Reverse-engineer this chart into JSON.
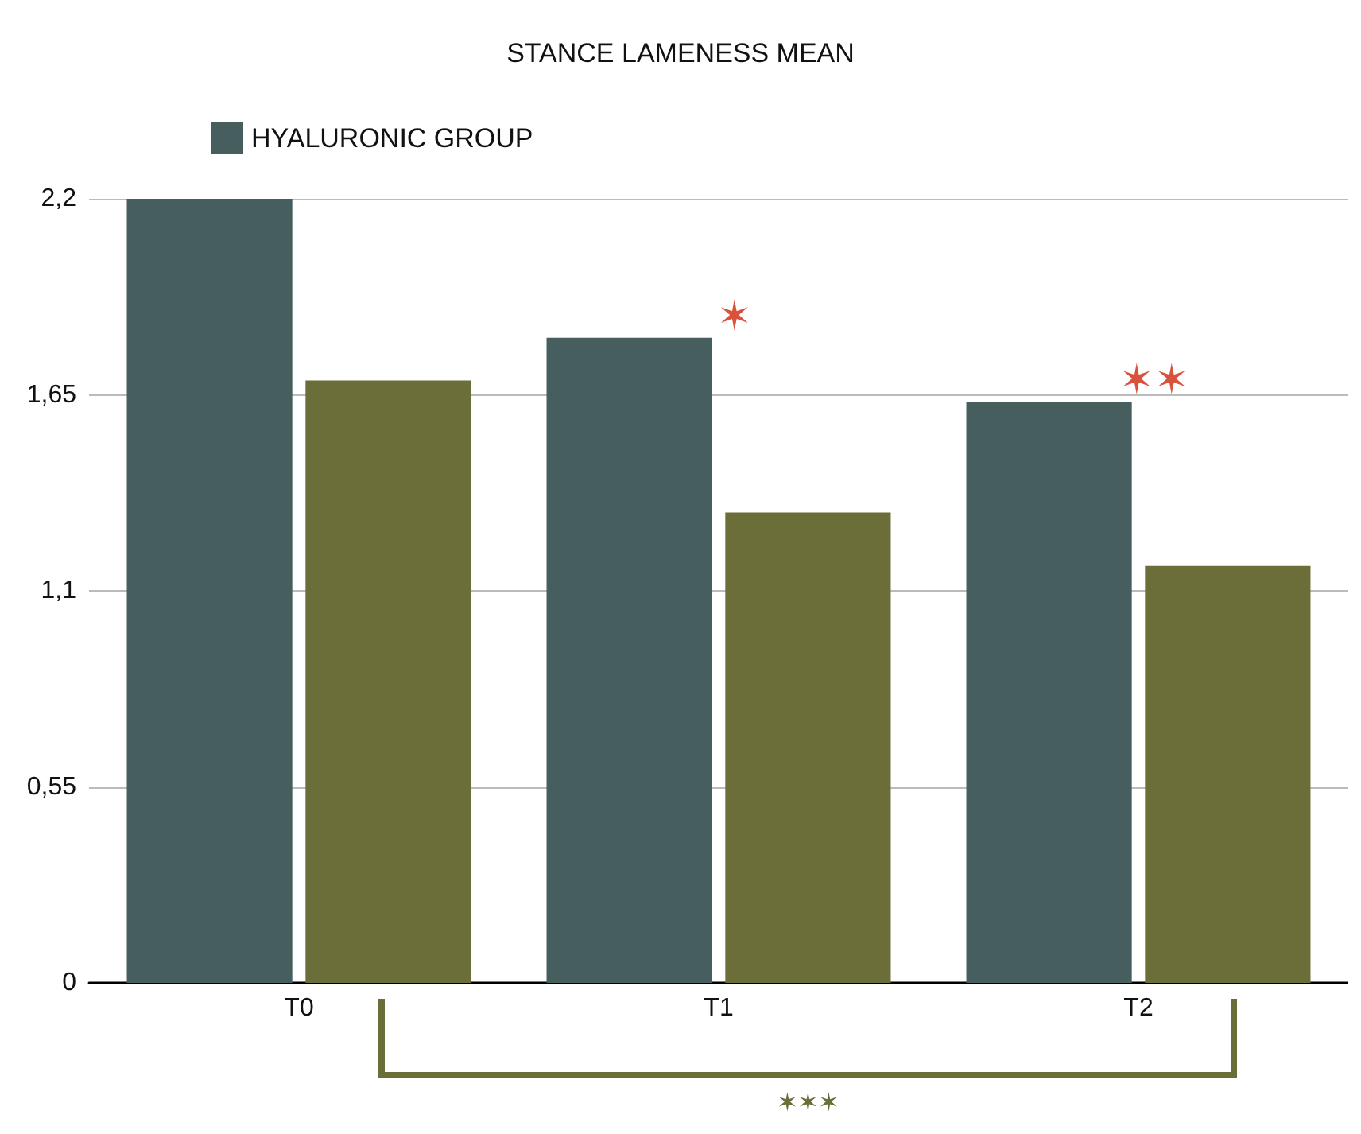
{
  "chart_data": {
    "type": "bar",
    "title": "STANCE LAMENESS MEAN",
    "categories": [
      "T0",
      "T1",
      "T2"
    ],
    "series": [
      {
        "name": "HYALURONIC GROUP",
        "color": "#465e5e",
        "values": [
          2.2,
          1.81,
          1.63
        ]
      },
      {
        "color": "#6b6e38",
        "values": [
          1.69,
          1.32,
          1.17
        ]
      }
    ],
    "ylim": [
      0,
      2.2
    ],
    "yticks": [
      0,
      {
        "value": 0.55,
        "label": "0,55"
      },
      {
        "value": 1.1,
        "label": "1,1"
      },
      {
        "value": 1.65,
        "label": "1,65"
      },
      {
        "value": 2.2,
        "label": "2,2"
      }
    ],
    "grid": "y",
    "legend": "top left",
    "annotations": [
      "✶",
      "✶✶",
      "✶✶✶"
    ]
  }
}
